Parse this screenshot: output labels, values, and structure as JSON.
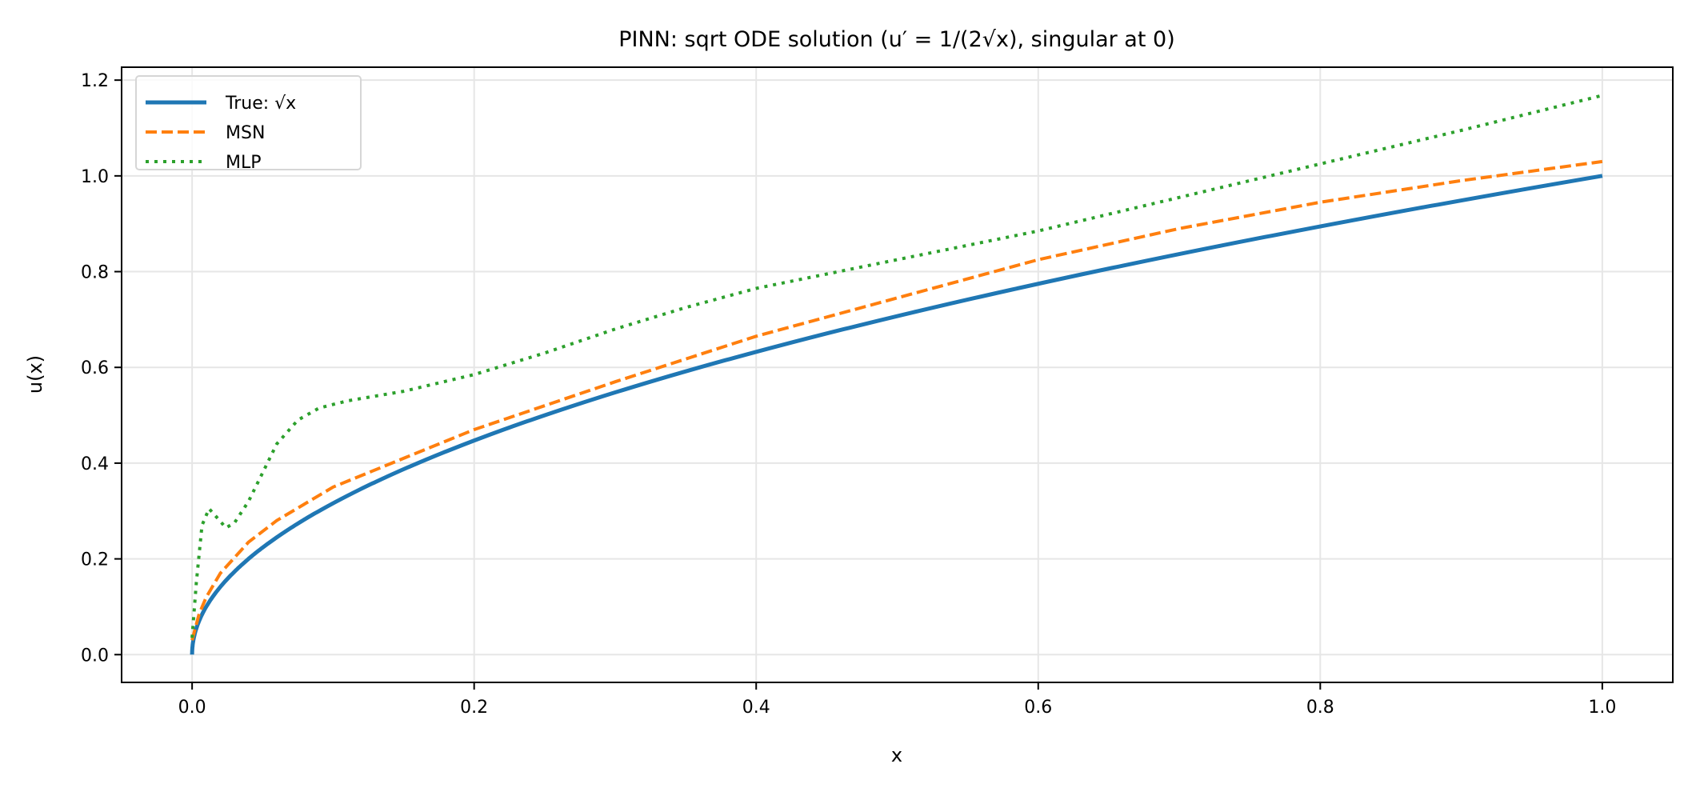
{
  "chart_data": {
    "type": "line",
    "title": "PINN: sqrt ODE solution (u′ = 1/(2√x), singular at 0)",
    "xlabel": "x",
    "ylabel": "u(x)",
    "xlim": [
      -0.05,
      1.05
    ],
    "ylim": [
      -0.058,
      1.227
    ],
    "xticks": [
      "0.0",
      "0.2",
      "0.4",
      "0.6",
      "0.8",
      "1.0"
    ],
    "yticks": [
      "0.0",
      "0.2",
      "0.4",
      "0.6",
      "0.8",
      "1.0",
      "1.2"
    ],
    "grid": true,
    "legend_position": "top-left",
    "series": [
      {
        "name": "True: √x",
        "style": "solid",
        "color": "#1f77b4",
        "function": "sqrt",
        "x_range": [
          0,
          1
        ]
      },
      {
        "name": "MSN",
        "style": "dashed",
        "color": "#ff7f0e",
        "x": [
          0,
          0.005,
          0.01,
          0.02,
          0.04,
          0.06,
          0.1,
          0.15,
          0.2,
          0.3,
          0.4,
          0.5,
          0.6,
          0.7,
          0.8,
          0.9,
          1.0
        ],
        "y": [
          0.03,
          0.085,
          0.12,
          0.17,
          0.235,
          0.28,
          0.35,
          0.41,
          0.47,
          0.57,
          0.665,
          0.745,
          0.825,
          0.89,
          0.945,
          0.99,
          1.03
        ]
      },
      {
        "name": "MLP",
        "style": "dotted",
        "color": "#2ca02c",
        "x": [
          0,
          0.003,
          0.007,
          0.012,
          0.018,
          0.024,
          0.03,
          0.04,
          0.05,
          0.06,
          0.075,
          0.09,
          0.11,
          0.15,
          0.2,
          0.25,
          0.3,
          0.35,
          0.4,
          0.5,
          0.6,
          0.7,
          0.8,
          0.9,
          1.0
        ],
        "y": [
          0.035,
          0.15,
          0.27,
          0.305,
          0.285,
          0.265,
          0.275,
          0.32,
          0.38,
          0.44,
          0.49,
          0.515,
          0.53,
          0.55,
          0.585,
          0.63,
          0.68,
          0.725,
          0.765,
          0.825,
          0.885,
          0.955,
          1.025,
          1.095,
          1.168
        ]
      }
    ]
  }
}
